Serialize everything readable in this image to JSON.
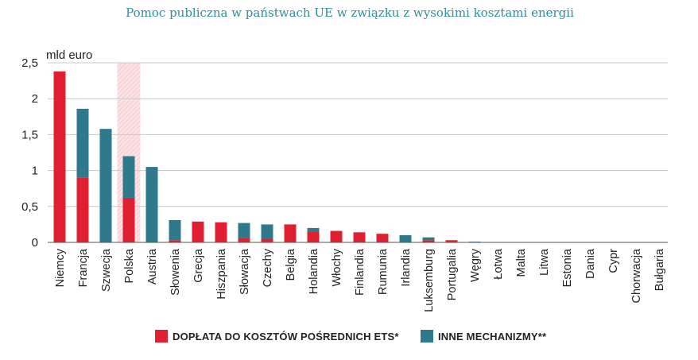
{
  "chart_data": {
    "type": "bar",
    "stacked": true,
    "title": "Pomoc publiczna w państwach UE w związku z wysokimi kosztami energii",
    "ylabel": "mld euro",
    "xlabel": "",
    "ylim": [
      0,
      2.5
    ],
    "yticks": [
      0,
      0.5,
      1,
      1.5,
      2,
      2.5
    ],
    "ytick_labels": [
      "0",
      "0,5",
      "1",
      "1,5",
      "2",
      "2,5"
    ],
    "grid": true,
    "legend_position": "bottom",
    "highlight_category": "Polska",
    "categories": [
      "Niemcy",
      "Francja",
      "Szwecja",
      "Polska",
      "Austria",
      "Słowenia",
      "Grecja",
      "Hiszpania",
      "Słowacja",
      "Czechy",
      "Belgia",
      "Holandia",
      "Włochy",
      "Finlandia",
      "Rumunia",
      "Irlandia",
      "Luksemburg",
      "Portugalia",
      "Węgry",
      "Łotwa",
      "Malta",
      "Litwa",
      "Estonia",
      "Dania",
      "Cypr",
      "Chorwacja",
      "Bułgaria"
    ],
    "series": [
      {
        "name": "DOPŁATA DO KOSZTÓW POŚREDNICH ETS*",
        "color": "#e02030",
        "values": [
          2.38,
          0.9,
          0,
          0.62,
          0,
          0.03,
          0.29,
          0.28,
          0.06,
          0.05,
          0.25,
          0.15,
          0.16,
          0.14,
          0.12,
          0,
          0.03,
          0.03,
          0,
          0,
          0,
          0,
          0,
          0,
          0,
          0,
          0
        ]
      },
      {
        "name": "INNE MECHANIZMY**",
        "color": "#2e7a8c",
        "values": [
          0,
          0.96,
          1.58,
          0.58,
          1.05,
          0.28,
          0,
          0,
          0.21,
          0.2,
          0,
          0.05,
          0,
          0,
          0,
          0.1,
          0.04,
          0,
          0.01,
          0,
          0,
          0,
          0,
          0,
          0,
          0,
          0
        ]
      }
    ]
  }
}
